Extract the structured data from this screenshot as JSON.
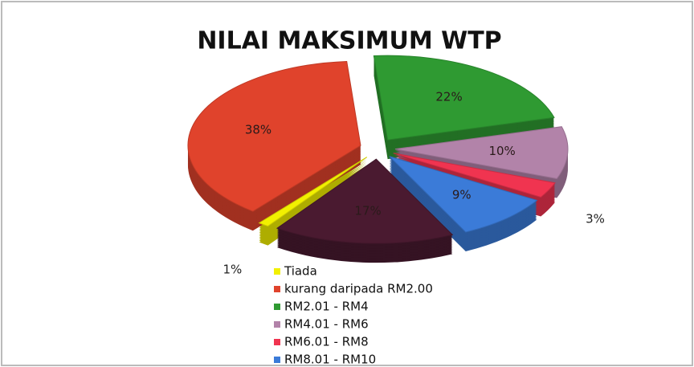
{
  "chart_data": {
    "type": "pie",
    "title": "NILAI MAKSIMUM WTP",
    "categories": [
      "Tiada",
      "kurang daripada RM2.00",
      "RM2.01 - RM4",
      "RM4.01 - RM6",
      "RM6.01 - RM8",
      "RM8.01 - RM10",
      null
    ],
    "values": [
      1,
      38,
      22,
      10,
      3,
      9,
      17
    ],
    "value_labels": [
      "1%",
      "38%",
      "22%",
      "10%",
      "3%",
      "9%",
      "17%"
    ],
    "colors": [
      "#f2f000",
      "#e0432c",
      "#2f9a32",
      "#b283a9",
      "#f03450",
      "#3b7bd8",
      "#4a1a30"
    ]
  }
}
